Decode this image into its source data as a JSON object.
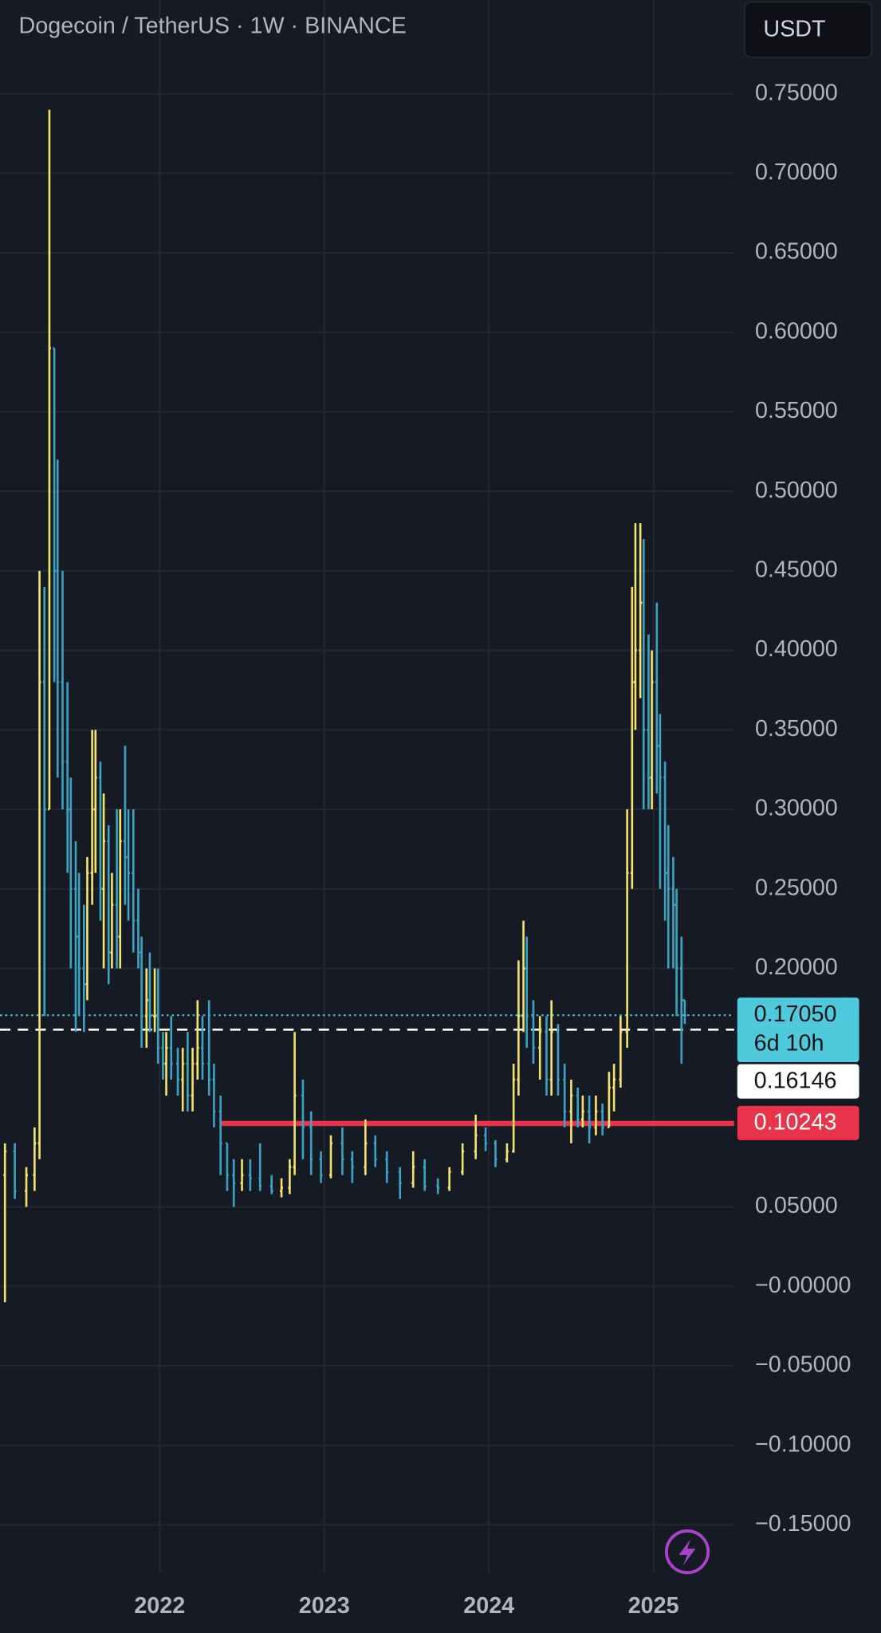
{
  "chart_data": {
    "type": "ohlc",
    "title": "Dogecoin / TetherUS · 1W · BINANCE",
    "currency_button": "USDT",
    "up_color": "#f5e46c",
    "down_color": "#3aa5c2",
    "grid": true,
    "xlim": [
      2021.03,
      2025.49
    ],
    "xticks": [
      2022,
      2023,
      2024,
      2025
    ],
    "ylim": [
      -0.18,
      0.809
    ],
    "yticks": [
      {
        "value": 0.75,
        "label": "0.75000"
      },
      {
        "value": 0.7,
        "label": "0.70000"
      },
      {
        "value": 0.65,
        "label": "0.65000"
      },
      {
        "value": 0.6,
        "label": "0.60000"
      },
      {
        "value": 0.55,
        "label": "0.55000"
      },
      {
        "value": 0.5,
        "label": "0.50000"
      },
      {
        "value": 0.45,
        "label": "0.45000"
      },
      {
        "value": 0.4,
        "label": "0.40000"
      },
      {
        "value": 0.35,
        "label": "0.35000"
      },
      {
        "value": 0.3,
        "label": "0.30000"
      },
      {
        "value": 0.25,
        "label": "0.25000"
      },
      {
        "value": 0.2,
        "label": "0.20000"
      },
      {
        "value": 0.05,
        "label": "0.05000"
      },
      {
        "value": 0,
        "label": "−0.00000"
      },
      {
        "value": -0.05,
        "label": "−0.05000"
      },
      {
        "value": -0.1,
        "label": "−0.10000"
      },
      {
        "value": -0.15,
        "label": "−0.15000"
      }
    ],
    "x": [
      2021.06,
      2021.12,
      2021.19,
      2021.24,
      2021.27,
      2021.3,
      2021.33,
      2021.36,
      2021.38,
      2021.41,
      2021.44,
      2021.46,
      2021.49,
      2021.51,
      2021.54,
      2021.56,
      2021.59,
      2021.61,
      2021.64,
      2021.66,
      2021.69,
      2021.71,
      2021.74,
      2021.76,
      2021.79,
      2021.81,
      2021.84,
      2021.87,
      2021.89,
      2021.92,
      2021.94,
      2021.97,
      2021.99,
      2022.02,
      2022.04,
      2022.07,
      2022.11,
      2022.14,
      2022.17,
      2022.2,
      2022.23,
      2022.26,
      2022.3,
      2022.33,
      2022.37,
      2022.41,
      2022.45,
      2022.5,
      2022.55,
      2022.61,
      2022.68,
      2022.74,
      2022.79,
      2022.82,
      2022.87,
      2022.92,
      2022.98,
      2023.04,
      2023.11,
      2023.17,
      2023.25,
      2023.31,
      2023.38,
      2023.46,
      2023.54,
      2023.61,
      2023.69,
      2023.76,
      2023.84,
      2023.92,
      2023.98,
      2024.04,
      2024.11,
      2024.15,
      2024.18,
      2024.21,
      2024.23,
      2024.27,
      2024.31,
      2024.35,
      2024.38,
      2024.42,
      2024.46,
      2024.5,
      2024.54,
      2024.57,
      2024.61,
      2024.65,
      2024.69,
      2024.73,
      2024.76,
      2024.8,
      2024.84,
      2024.87,
      2024.89,
      2024.92,
      2024.94,
      2024.97,
      2024.99,
      2025.02,
      2025.04,
      2025.07,
      2025.09,
      2025.12,
      2025.14,
      2025.17,
      2025.19
    ],
    "open": [
      0.07,
      0.085,
      0.06,
      0.07,
      0.09,
      0.38,
      0.3,
      0.59,
      0.45,
      0.38,
      0.33,
      0.3,
      0.25,
      0.22,
      0.2,
      0.19,
      0.26,
      0.3,
      0.32,
      0.25,
      0.28,
      0.21,
      0.24,
      0.22,
      0.28,
      0.27,
      0.26,
      0.23,
      0.21,
      0.17,
      0.18,
      0.17,
      0.17,
      0.15,
      0.14,
      0.15,
      0.14,
      0.13,
      0.14,
      0.12,
      0.14,
      0.15,
      0.14,
      0.13,
      0.11,
      0.09,
      0.07,
      0.065,
      0.07,
      0.068,
      0.063,
      0.06,
      0.062,
      0.075,
      0.12,
      0.1,
      0.08,
      0.07,
      0.09,
      0.08,
      0.075,
      0.09,
      0.08,
      0.072,
      0.065,
      0.075,
      0.063,
      0.062,
      0.072,
      0.085,
      0.095,
      0.09,
      0.08,
      0.085,
      0.13,
      0.17,
      0.2,
      0.17,
      0.15,
      0.16,
      0.13,
      0.16,
      0.13,
      0.11,
      0.12,
      0.105,
      0.11,
      0.1,
      0.11,
      0.1,
      0.125,
      0.13,
      0.16,
      0.26,
      0.38,
      0.4,
      0.43,
      0.35,
      0.32,
      0.38,
      0.34,
      0.32,
      0.26,
      0.25,
      0.24,
      0.2,
      0.18
    ],
    "high": [
      0.09,
      0.09,
      0.075,
      0.1,
      0.45,
      0.44,
      0.74,
      0.59,
      0.52,
      0.45,
      0.38,
      0.32,
      0.28,
      0.26,
      0.24,
      0.27,
      0.35,
      0.35,
      0.33,
      0.31,
      0.29,
      0.26,
      0.3,
      0.3,
      0.34,
      0.3,
      0.3,
      0.25,
      0.22,
      0.2,
      0.21,
      0.2,
      0.2,
      0.16,
      0.16,
      0.17,
      0.15,
      0.15,
      0.16,
      0.15,
      0.18,
      0.17,
      0.18,
      0.14,
      0.12,
      0.09,
      0.08,
      0.08,
      0.08,
      0.09,
      0.07,
      0.068,
      0.08,
      0.16,
      0.13,
      0.11,
      0.085,
      0.095,
      0.1,
      0.085,
      0.105,
      0.095,
      0.085,
      0.075,
      0.085,
      0.08,
      0.068,
      0.075,
      0.09,
      0.108,
      0.1,
      0.092,
      0.09,
      0.14,
      0.205,
      0.23,
      0.22,
      0.18,
      0.17,
      0.17,
      0.18,
      0.165,
      0.14,
      0.13,
      0.125,
      0.12,
      0.12,
      0.12,
      0.115,
      0.135,
      0.14,
      0.17,
      0.3,
      0.44,
      0.48,
      0.48,
      0.47,
      0.41,
      0.4,
      0.43,
      0.36,
      0.33,
      0.29,
      0.27,
      0.25,
      0.22,
      0.18
    ],
    "low": [
      -0.01,
      0.055,
      0.05,
      0.06,
      0.08,
      0.17,
      0.3,
      0.38,
      0.32,
      0.3,
      0.26,
      0.2,
      0.16,
      0.17,
      0.16,
      0.18,
      0.24,
      0.26,
      0.23,
      0.2,
      0.19,
      0.2,
      0.2,
      0.2,
      0.24,
      0.23,
      0.21,
      0.2,
      0.15,
      0.15,
      0.16,
      0.16,
      0.14,
      0.13,
      0.12,
      0.13,
      0.12,
      0.11,
      0.11,
      0.11,
      0.13,
      0.13,
      0.12,
      0.1,
      0.07,
      0.06,
      0.05,
      0.06,
      0.06,
      0.06,
      0.058,
      0.056,
      0.058,
      0.07,
      0.08,
      0.07,
      0.065,
      0.068,
      0.07,
      0.065,
      0.07,
      0.075,
      0.065,
      0.055,
      0.062,
      0.06,
      0.058,
      0.06,
      0.07,
      0.08,
      0.085,
      0.075,
      0.078,
      0.084,
      0.12,
      0.16,
      0.15,
      0.14,
      0.13,
      0.12,
      0.12,
      0.12,
      0.1,
      0.09,
      0.1,
      0.1,
      0.09,
      0.095,
      0.095,
      0.1,
      0.11,
      0.125,
      0.15,
      0.25,
      0.35,
      0.37,
      0.3,
      0.3,
      0.3,
      0.31,
      0.25,
      0.23,
      0.2,
      0.2,
      0.17,
      0.14,
      0.165
    ],
    "close": [
      0.085,
      0.06,
      0.07,
      0.09,
      0.38,
      0.3,
      0.59,
      0.45,
      0.38,
      0.33,
      0.3,
      0.25,
      0.22,
      0.2,
      0.19,
      0.26,
      0.3,
      0.32,
      0.25,
      0.28,
      0.21,
      0.24,
      0.22,
      0.28,
      0.27,
      0.26,
      0.23,
      0.21,
      0.17,
      0.18,
      0.17,
      0.17,
      0.15,
      0.14,
      0.15,
      0.14,
      0.13,
      0.14,
      0.12,
      0.14,
      0.15,
      0.14,
      0.13,
      0.11,
      0.09,
      0.07,
      0.065,
      0.07,
      0.068,
      0.063,
      0.06,
      0.062,
      0.075,
      0.12,
      0.1,
      0.08,
      0.07,
      0.09,
      0.08,
      0.075,
      0.09,
      0.08,
      0.072,
      0.065,
      0.075,
      0.063,
      0.062,
      0.072,
      0.085,
      0.095,
      0.09,
      0.08,
      0.085,
      0.13,
      0.17,
      0.2,
      0.17,
      0.15,
      0.16,
      0.13,
      0.16,
      0.13,
      0.11,
      0.12,
      0.105,
      0.11,
      0.1,
      0.11,
      0.1,
      0.125,
      0.13,
      0.16,
      0.26,
      0.38,
      0.4,
      0.43,
      0.35,
      0.32,
      0.38,
      0.34,
      0.32,
      0.26,
      0.25,
      0.24,
      0.2,
      0.18,
      0.1705
    ],
    "price_lines": [
      {
        "value": 0.1705,
        "label": "0.17050",
        "sub_label": "6d 10h",
        "color": "#4fc9dc",
        "text_color": "#111318",
        "style": "dotted"
      },
      {
        "value": 0.16146,
        "label": "0.16146",
        "color": "#ffffff",
        "text_color": "#111318",
        "style": "dashed"
      },
      {
        "value": 0.10243,
        "label": "0.10243",
        "color": "#e8334a",
        "text_color": "#ffffff",
        "style": "solid",
        "start": 2022.37
      }
    ]
  }
}
